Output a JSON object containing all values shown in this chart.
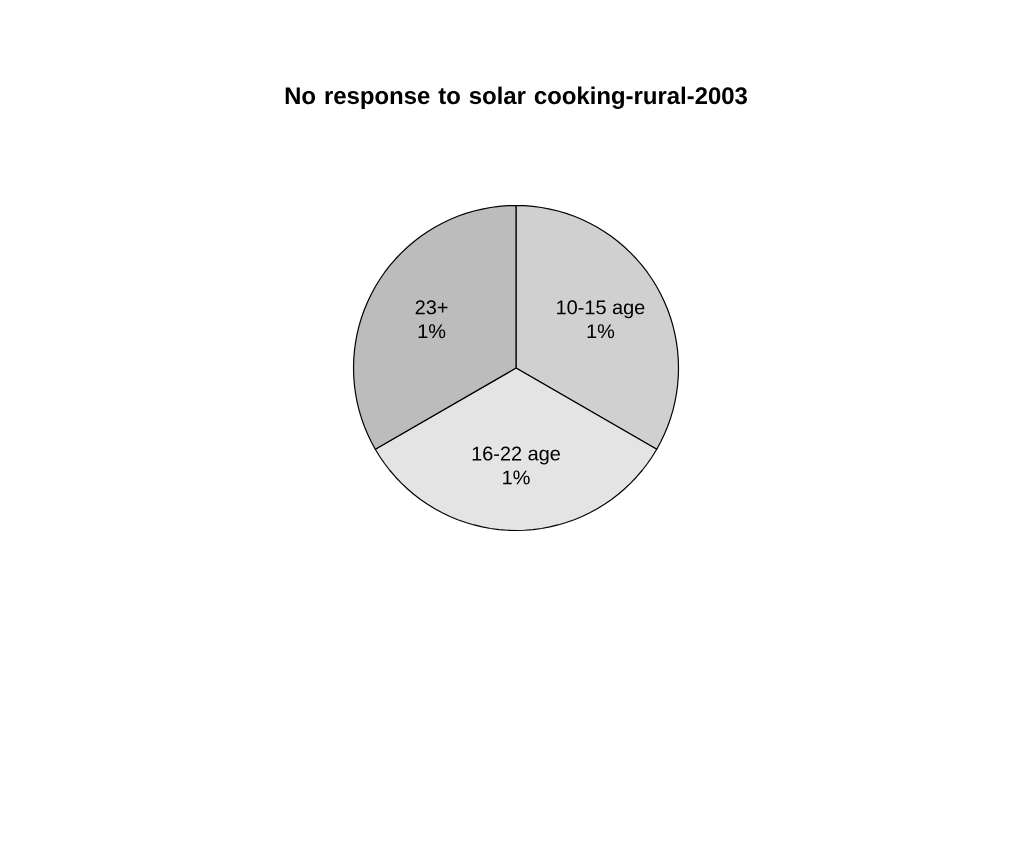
{
  "chart_data": {
    "type": "pie",
    "title": "No response to solar cooking-rural-2003",
    "categories": [
      "10-15 age",
      "16-22 age",
      "23+"
    ],
    "values": [
      1,
      1,
      1
    ],
    "value_labels": [
      "1%",
      "1%",
      "1%"
    ],
    "colors": [
      "#d0d0d0",
      "#e4e4e4",
      "#bcbcbc"
    ]
  }
}
